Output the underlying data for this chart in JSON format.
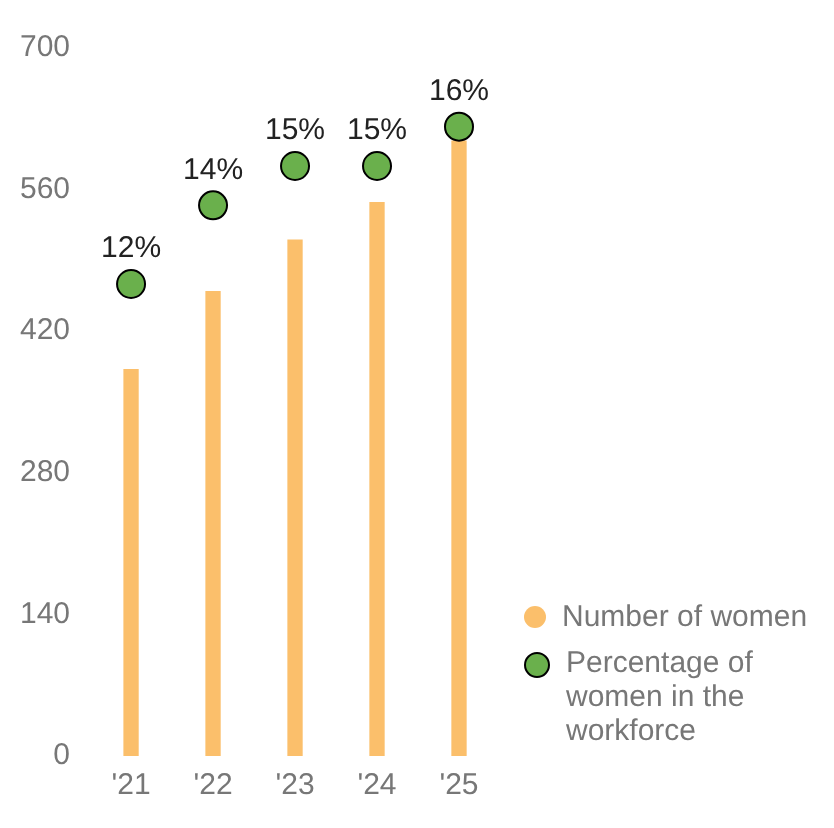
{
  "chart_data": {
    "type": "bar",
    "categories": [
      "'21",
      "'22",
      "'23",
      "'24",
      "'25"
    ],
    "series": [
      {
        "name": "Number of women",
        "color": "#fbbf6b",
        "values": [
          382,
          459,
          510,
          547,
          608
        ]
      },
      {
        "name": "Percentage of women in the workforce",
        "type": "scatter",
        "axis": "y2",
        "color": "#6ab04c",
        "values": [
          12,
          14,
          15,
          15,
          16
        ],
        "value_labels": [
          "12%",
          "14%",
          "15%",
          "15%",
          "16%"
        ]
      }
    ],
    "ylim": [
      0,
      700
    ],
    "yticks": [
      0,
      140,
      280,
      420,
      560,
      700
    ],
    "grid": false,
    "legend": "bottom right",
    "marker": "circle"
  }
}
